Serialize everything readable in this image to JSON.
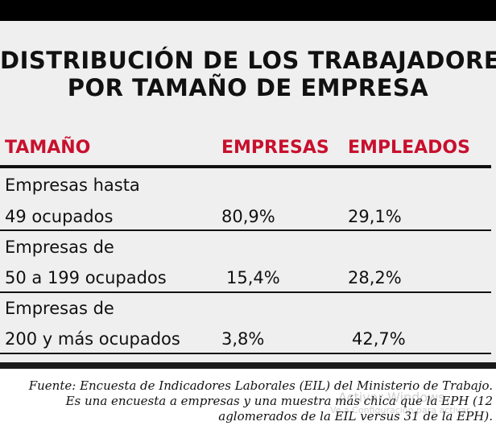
{
  "title": {
    "line1": "DISTRIBUCIÓN DE LOS TRABAJADORES",
    "line2": "POR TAMAÑO DE EMPRESA"
  },
  "table": {
    "headers": [
      "TAMAÑO",
      "EMPRESAS",
      "EMPLEADOS"
    ],
    "rows": [
      {
        "label_line1": "Empresas hasta",
        "label_line2": "49 ocupados",
        "empresas": "80,9%",
        "empleados": "29,1%"
      },
      {
        "label_line1": "Empresas de",
        "label_line2": "50 a 199 ocupados",
        "empresas": "15,4%",
        "empleados": "28,2%"
      },
      {
        "label_line1": "Empresas de",
        "label_line2": "200 y más ocupados",
        "empresas": "3,8%",
        "empleados": "42,7%"
      }
    ]
  },
  "source": {
    "line1": "Fuente: Encuesta de Indicadores Laborales (EIL) del Ministerio de Trabajo.",
    "line2": "Es una encuesta a empresas y una muestra más chica que la EPH (12",
    "line3": "aglomerados de la EIL versus 31 de la EPH)."
  },
  "watermark": {
    "line1": "Activar Windows",
    "line2": "Ve a Configuración para activar"
  },
  "colors": {
    "accent_red": "#c8102e",
    "panel_background": "#efefef",
    "text": "#111111"
  }
}
